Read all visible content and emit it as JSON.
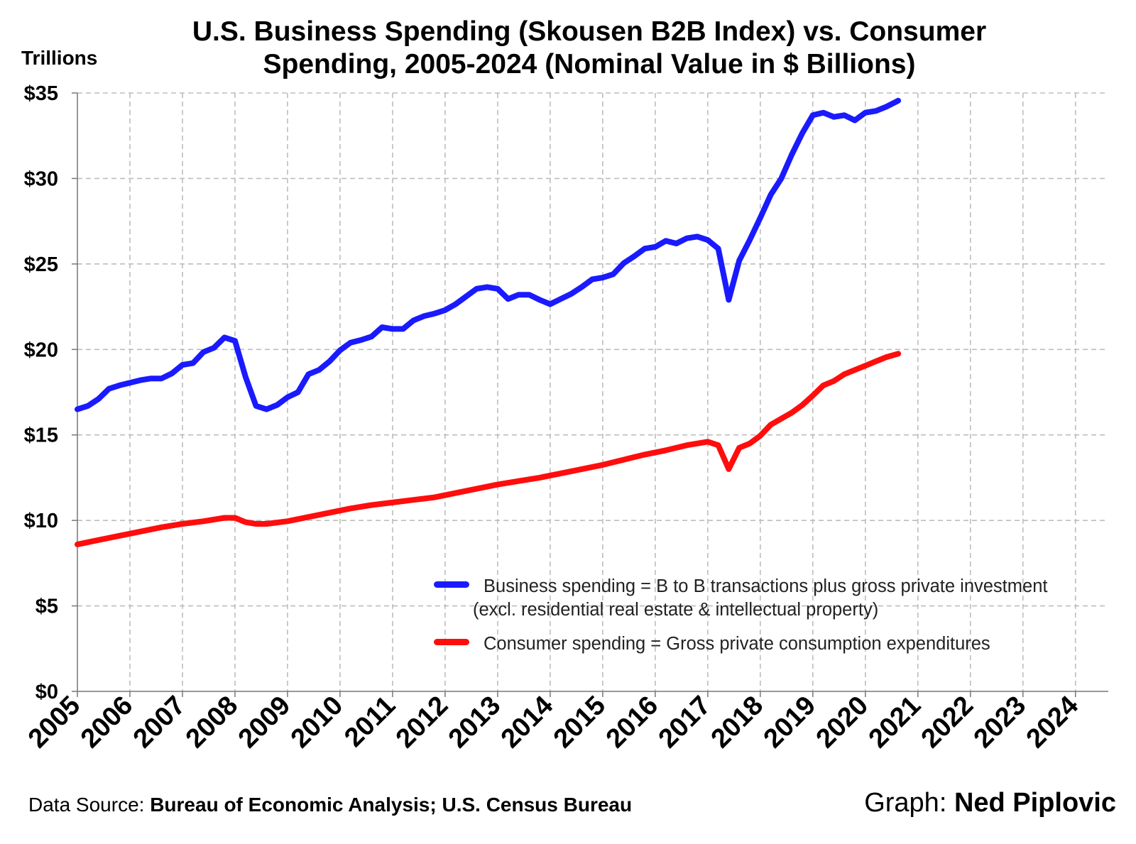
{
  "title_line1": "U.S. Business Spending (Skousen B2B Index) vs. Consumer",
  "title_line2": "Spending, 2005-2024  (Nominal Value in $ Billions)",
  "units_label": "Trillions",
  "footer": {
    "source_prefix": "Data Source: ",
    "source_bold": "Bureau of Economic Analysis; U.S. Census Bureau",
    "credit_prefix": "Graph: ",
    "credit_bold": "Ned Piplovic"
  },
  "legend": {
    "business_line1": "Business spending = B to B transactions plus gross private investment",
    "business_line2": "(excl. residential real estate & intellectual property)",
    "consumer": "Consumer spending = Gross private consumption expenditures",
    "placement": "bottom-right"
  },
  "colors": {
    "business": "#1a1aff",
    "consumer": "#ff0d0d",
    "grid": "#bdbdbd"
  },
  "chart_data": {
    "type": "line",
    "y_tick_labels": [
      "$0",
      "$5",
      "$10",
      "$15",
      "$20",
      "$25",
      "$30",
      "$35"
    ],
    "y_tick_values": [
      0,
      5,
      10,
      15,
      20,
      25,
      30,
      35
    ],
    "ylim": [
      0,
      35
    ],
    "x_tick_labels": [
      "2005",
      "2006",
      "2007",
      "2008",
      "2009",
      "2010",
      "2011",
      "2012",
      "2013",
      "2014",
      "2015",
      "2016",
      "2017",
      "2018",
      "2019",
      "2020",
      "2021",
      "2022",
      "2023",
      "2024"
    ],
    "xlim": [
      2005,
      2024.625
    ],
    "grid": true,
    "series": [
      {
        "name": "Business spending = B to B transactions plus gross private investment (excl. residential real estate & intellectual property)",
        "points": [
          [
            2005.0,
            16.5
          ],
          [
            2005.2,
            16.7
          ],
          [
            2005.4,
            17.1
          ],
          [
            2005.6,
            17.7
          ],
          [
            2005.8,
            17.9
          ],
          [
            2006.0,
            18.05
          ],
          [
            2006.2,
            18.2
          ],
          [
            2006.4,
            18.3
          ],
          [
            2006.6,
            18.3
          ],
          [
            2006.8,
            18.6
          ],
          [
            2007.0,
            19.1
          ],
          [
            2007.2,
            19.2
          ],
          [
            2007.4,
            19.85
          ],
          [
            2007.6,
            20.1
          ],
          [
            2007.8,
            20.7
          ],
          [
            2008.0,
            20.5
          ],
          [
            2008.2,
            18.4
          ],
          [
            2008.4,
            16.7
          ],
          [
            2008.6,
            16.5
          ],
          [
            2008.8,
            16.75
          ],
          [
            2009.0,
            17.2
          ],
          [
            2009.2,
            17.5
          ],
          [
            2009.4,
            18.55
          ],
          [
            2009.6,
            18.8
          ],
          [
            2009.8,
            19.3
          ],
          [
            2010.0,
            19.95
          ],
          [
            2010.2,
            20.4
          ],
          [
            2010.4,
            20.55
          ],
          [
            2010.6,
            20.75
          ],
          [
            2010.8,
            21.3
          ],
          [
            2011.0,
            21.2
          ],
          [
            2011.2,
            21.2
          ],
          [
            2011.4,
            21.7
          ],
          [
            2011.6,
            21.95
          ],
          [
            2011.8,
            22.1
          ],
          [
            2012.0,
            22.3
          ],
          [
            2012.2,
            22.65
          ],
          [
            2012.4,
            23.1
          ],
          [
            2012.6,
            23.55
          ],
          [
            2012.8,
            23.65
          ],
          [
            2013.0,
            23.55
          ],
          [
            2013.2,
            22.95
          ],
          [
            2013.4,
            23.2
          ],
          [
            2013.6,
            23.2
          ],
          [
            2013.8,
            22.9
          ],
          [
            2014.0,
            22.65
          ],
          [
            2014.2,
            22.95
          ],
          [
            2014.4,
            23.25
          ],
          [
            2014.6,
            23.65
          ],
          [
            2014.8,
            24.1
          ],
          [
            2015.0,
            24.2
          ],
          [
            2015.2,
            24.4
          ],
          [
            2015.4,
            25.05
          ],
          [
            2015.6,
            25.45
          ],
          [
            2015.8,
            25.9
          ],
          [
            2016.0,
            26.0
          ],
          [
            2016.2,
            26.35
          ],
          [
            2016.4,
            26.2
          ],
          [
            2016.6,
            26.5
          ],
          [
            2016.8,
            26.6
          ],
          [
            2017.0,
            26.4
          ],
          [
            2017.2,
            25.9
          ],
          [
            2017.4,
            22.9
          ],
          [
            2017.6,
            25.2
          ],
          [
            2017.8,
            26.4
          ],
          [
            2018.0,
            27.7
          ],
          [
            2018.2,
            29.05
          ],
          [
            2018.4,
            30.0
          ],
          [
            2018.6,
            31.4
          ],
          [
            2018.8,
            32.65
          ],
          [
            2019.0,
            33.7
          ],
          [
            2019.2,
            33.85
          ],
          [
            2019.4,
            33.6
          ],
          [
            2019.6,
            33.7
          ],
          [
            2019.8,
            33.4
          ],
          [
            2020.0,
            33.85
          ],
          [
            2020.2,
            33.95
          ],
          [
            2020.4,
            34.2
          ],
          [
            2020.625,
            34.55
          ]
        ]
      },
      {
        "name": "Consumer spending = Gross private consumption expenditures",
        "points": [
          [
            2005.0,
            8.6
          ],
          [
            2005.4,
            8.85
          ],
          [
            2005.8,
            9.1
          ],
          [
            2006.2,
            9.35
          ],
          [
            2006.6,
            9.6
          ],
          [
            2007.0,
            9.8
          ],
          [
            2007.4,
            9.95
          ],
          [
            2007.8,
            10.15
          ],
          [
            2008.0,
            10.15
          ],
          [
            2008.2,
            9.9
          ],
          [
            2008.4,
            9.8
          ],
          [
            2008.6,
            9.8
          ],
          [
            2009.0,
            9.95
          ],
          [
            2009.4,
            10.2
          ],
          [
            2009.8,
            10.45
          ],
          [
            2010.2,
            10.7
          ],
          [
            2010.6,
            10.9
          ],
          [
            2011.0,
            11.05
          ],
          [
            2011.4,
            11.2
          ],
          [
            2011.8,
            11.35
          ],
          [
            2012.2,
            11.6
          ],
          [
            2012.6,
            11.85
          ],
          [
            2013.0,
            12.1
          ],
          [
            2013.4,
            12.3
          ],
          [
            2013.8,
            12.5
          ],
          [
            2014.2,
            12.75
          ],
          [
            2014.6,
            13.0
          ],
          [
            2015.0,
            13.25
          ],
          [
            2015.4,
            13.55
          ],
          [
            2015.8,
            13.85
          ],
          [
            2016.2,
            14.1
          ],
          [
            2016.6,
            14.4
          ],
          [
            2017.0,
            14.6
          ],
          [
            2017.2,
            14.4
          ],
          [
            2017.4,
            13.0
          ],
          [
            2017.6,
            14.25
          ],
          [
            2017.8,
            14.5
          ],
          [
            2018.0,
            14.95
          ],
          [
            2018.2,
            15.6
          ],
          [
            2018.4,
            15.95
          ],
          [
            2018.6,
            16.3
          ],
          [
            2018.8,
            16.75
          ],
          [
            2019.0,
            17.3
          ],
          [
            2019.2,
            17.9
          ],
          [
            2019.4,
            18.15
          ],
          [
            2019.6,
            18.55
          ],
          [
            2019.8,
            18.8
          ],
          [
            2020.0,
            19.05
          ],
          [
            2020.2,
            19.3
          ],
          [
            2020.4,
            19.55
          ],
          [
            2020.625,
            19.75
          ]
        ]
      }
    ]
  }
}
